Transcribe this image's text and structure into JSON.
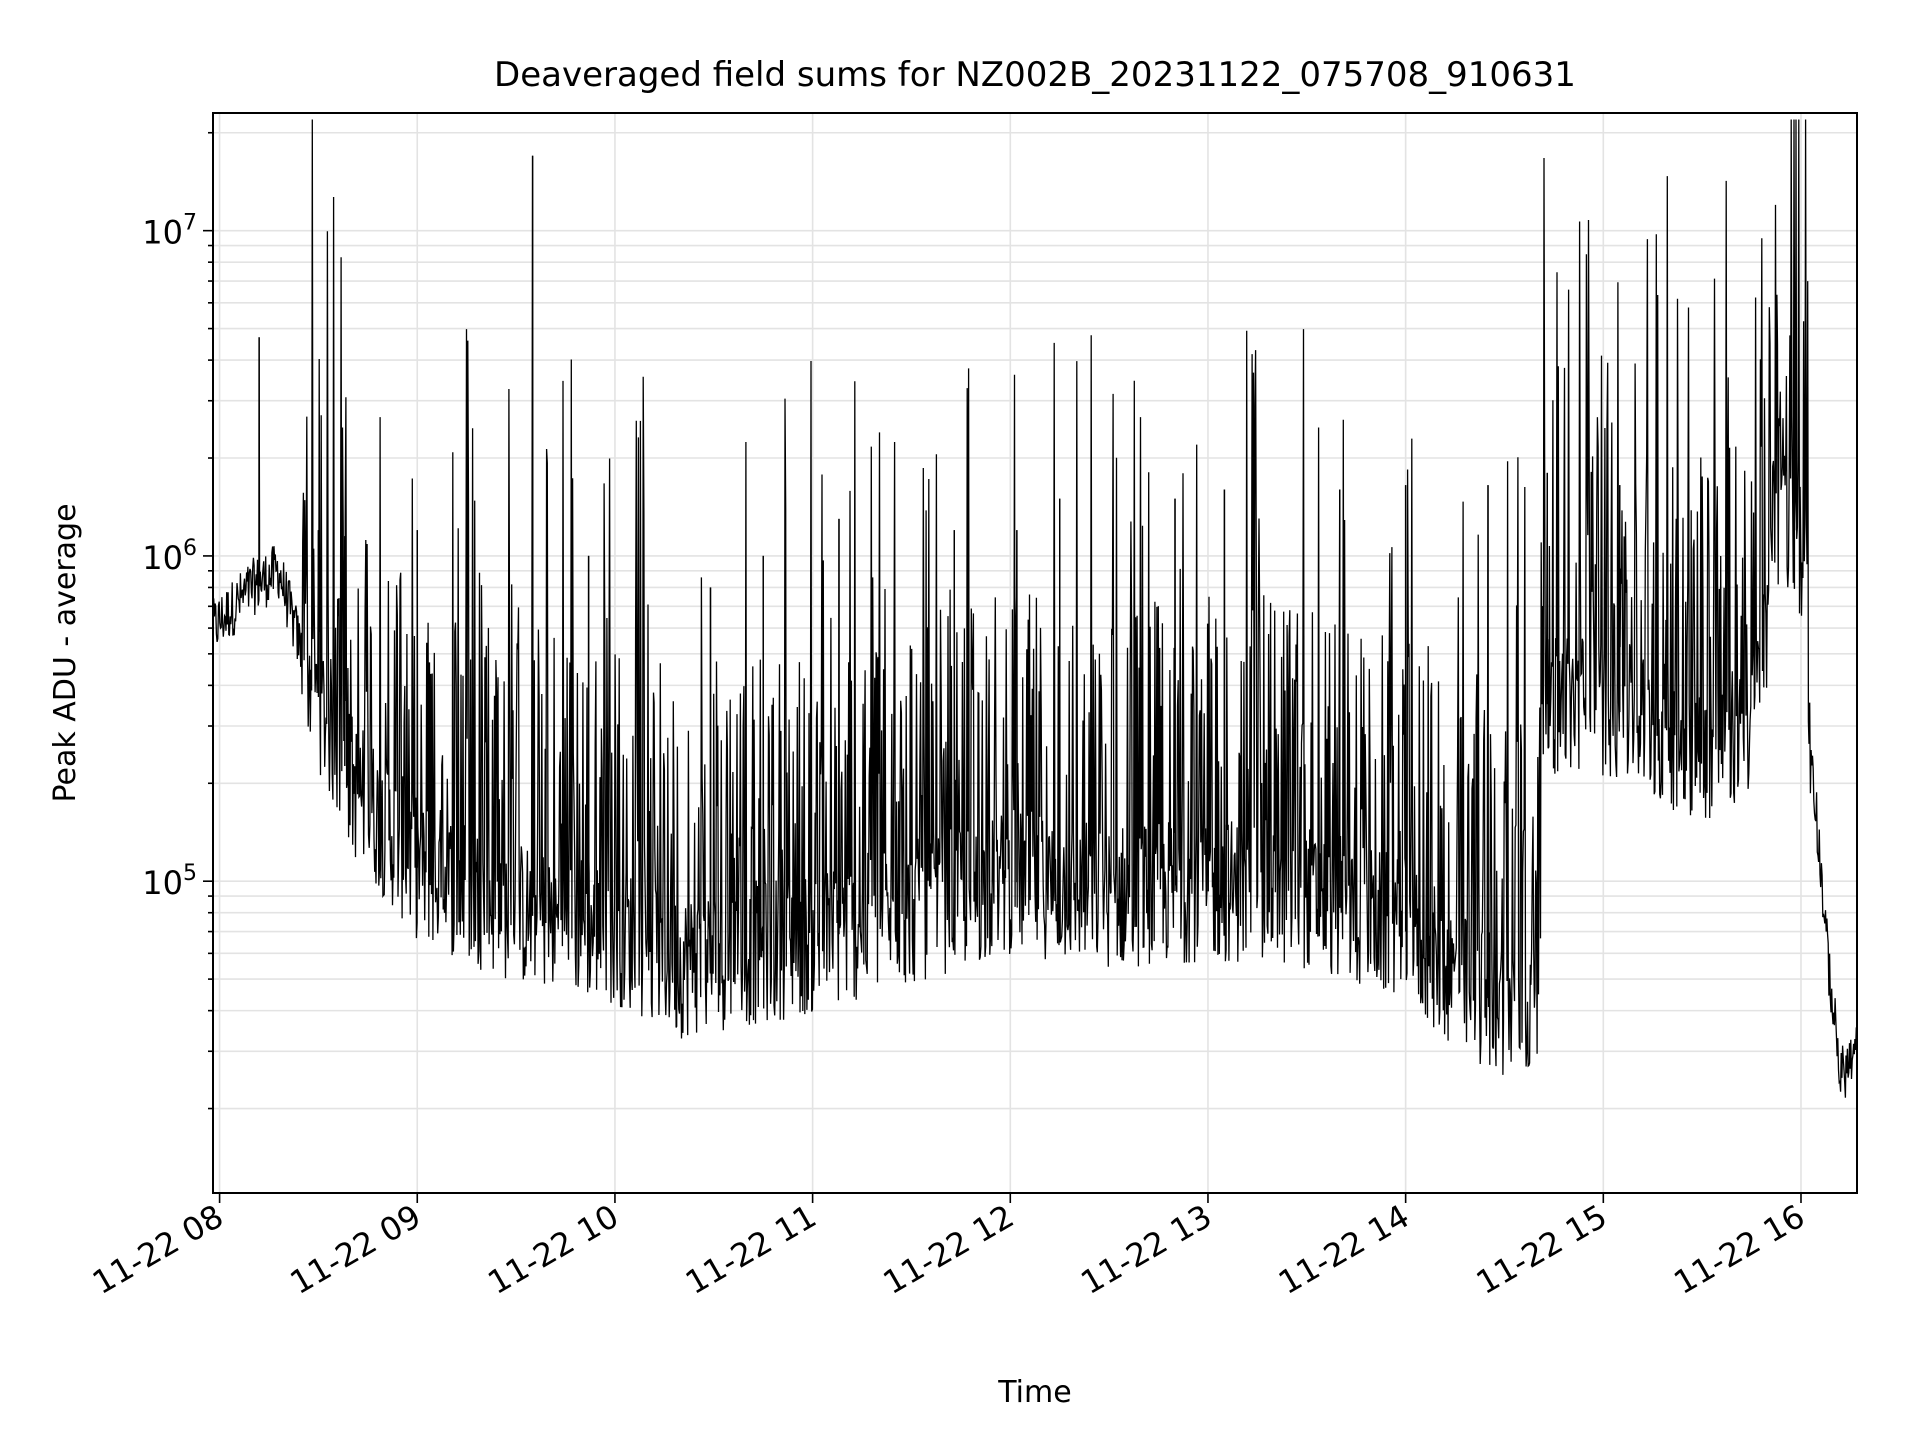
{
  "chart_data": {
    "type": "line",
    "title": "Deaveraged field sums for NZ002B_20231122_075708_910631",
    "xlabel": "Time",
    "ylabel": "Peak ADU - average",
    "yscale": "log",
    "ylim": [
      11000,
      23000000
    ],
    "xlim": [
      "2023-11-22 07:58",
      "2023-11-22 16:17"
    ],
    "x_ticks": [
      {
        "label": "11-22 08",
        "time": "2023-11-22 08:00"
      },
      {
        "label": "11-22 09",
        "time": "2023-11-22 09:00"
      },
      {
        "label": "11-22 10",
        "time": "2023-11-22 10:00"
      },
      {
        "label": "11-22 11",
        "time": "2023-11-22 11:00"
      },
      {
        "label": "11-22 12",
        "time": "2023-11-22 12:00"
      },
      {
        "label": "11-22 13",
        "time": "2023-11-22 13:00"
      },
      {
        "label": "11-22 14",
        "time": "2023-11-22 14:00"
      },
      {
        "label": "11-22 15",
        "time": "2023-11-22 15:00"
      },
      {
        "label": "11-22 16",
        "time": "2023-11-22 16:00"
      }
    ],
    "y_ticks": [
      {
        "base": "10",
        "exp": "5",
        "value": 100000
      },
      {
        "base": "10",
        "exp": "6",
        "value": 1000000
      },
      {
        "base": "10",
        "exp": "7",
        "value": 10000000
      }
    ],
    "grid": true,
    "line_color": "#000000",
    "baseline": [
      {
        "t": "2023-11-22 07:58",
        "v": 600000
      },
      {
        "t": "2023-11-22 08:10",
        "v": 800000
      },
      {
        "t": "2023-11-22 08:18",
        "v": 900000
      },
      {
        "t": "2023-11-22 08:25",
        "v": 500000
      },
      {
        "t": "2023-11-22 08:40",
        "v": 200000
      },
      {
        "t": "2023-11-22 09:00",
        "v": 110000
      },
      {
        "t": "2023-11-22 09:30",
        "v": 80000
      },
      {
        "t": "2023-11-22 10:00",
        "v": 70000
      },
      {
        "t": "2023-11-22 10:20",
        "v": 55000
      },
      {
        "t": "2023-11-22 11:00",
        "v": 65000
      },
      {
        "t": "2023-11-22 11:30",
        "v": 80000
      },
      {
        "t": "2023-11-22 12:00",
        "v": 100000
      },
      {
        "t": "2023-11-22 12:30",
        "v": 90000
      },
      {
        "t": "2023-11-22 13:00",
        "v": 95000
      },
      {
        "t": "2023-11-22 13:30",
        "v": 90000
      },
      {
        "t": "2023-11-22 14:00",
        "v": 70000
      },
      {
        "t": "2023-11-22 14:20",
        "v": 45000
      },
      {
        "t": "2023-11-22 14:40",
        "v": 40000
      },
      {
        "t": "2023-11-22 14:42",
        "v": 350000
      },
      {
        "t": "2023-11-22 15:00",
        "v": 350000
      },
      {
        "t": "2023-11-22 15:30",
        "v": 250000
      },
      {
        "t": "2023-11-22 15:45",
        "v": 300000
      },
      {
        "t": "2023-11-22 15:55",
        "v": 1200000
      },
      {
        "t": "2023-11-22 16:00",
        "v": 600000
      },
      {
        "t": "2023-11-22 16:04",
        "v": 200000
      },
      {
        "t": "2023-11-22 16:08",
        "v": 60000
      },
      {
        "t": "2023-11-22 16:12",
        "v": 25000
      },
      {
        "t": "2023-11-22 16:17",
        "v": 30000
      }
    ],
    "peaks": [
      {
        "t": "2023-11-22 08:12",
        "v": 4700000
      },
      {
        "t": "2023-11-22 08:30",
        "v": 1200000
      },
      {
        "t": "2023-11-22 08:38",
        "v": 1150000
      },
      {
        "t": "2023-11-22 09:00",
        "v": 1200000
      },
      {
        "t": "2023-11-22 09:35",
        "v": 17000000
      },
      {
        "t": "2023-11-22 09:52",
        "v": 1000000
      },
      {
        "t": "2023-11-22 10:29",
        "v": 800000
      },
      {
        "t": "2023-11-22 10:45",
        "v": 1000000
      },
      {
        "t": "2023-11-22 11:08",
        "v": 1300000
      },
      {
        "t": "2023-11-22 11:43",
        "v": 1200000
      },
      {
        "t": "2023-11-22 12:02",
        "v": 1200000
      },
      {
        "t": "2023-11-22 12:15",
        "v": 1500000
      },
      {
        "t": "2023-11-22 12:50",
        "v": 1500000
      },
      {
        "t": "2023-11-22 13:05",
        "v": 1600000
      },
      {
        "t": "2023-11-22 13:40",
        "v": 1600000
      },
      {
        "t": "2023-11-22 14:00",
        "v": 1650000
      },
      {
        "t": "2023-11-22 14:25",
        "v": 1650000
      },
      {
        "t": "2023-11-22 14:43",
        "v": 1800000
      },
      {
        "t": "2023-11-22 15:05",
        "v": 1650000
      },
      {
        "t": "2023-11-22 15:58",
        "v": 7000000
      }
    ]
  }
}
